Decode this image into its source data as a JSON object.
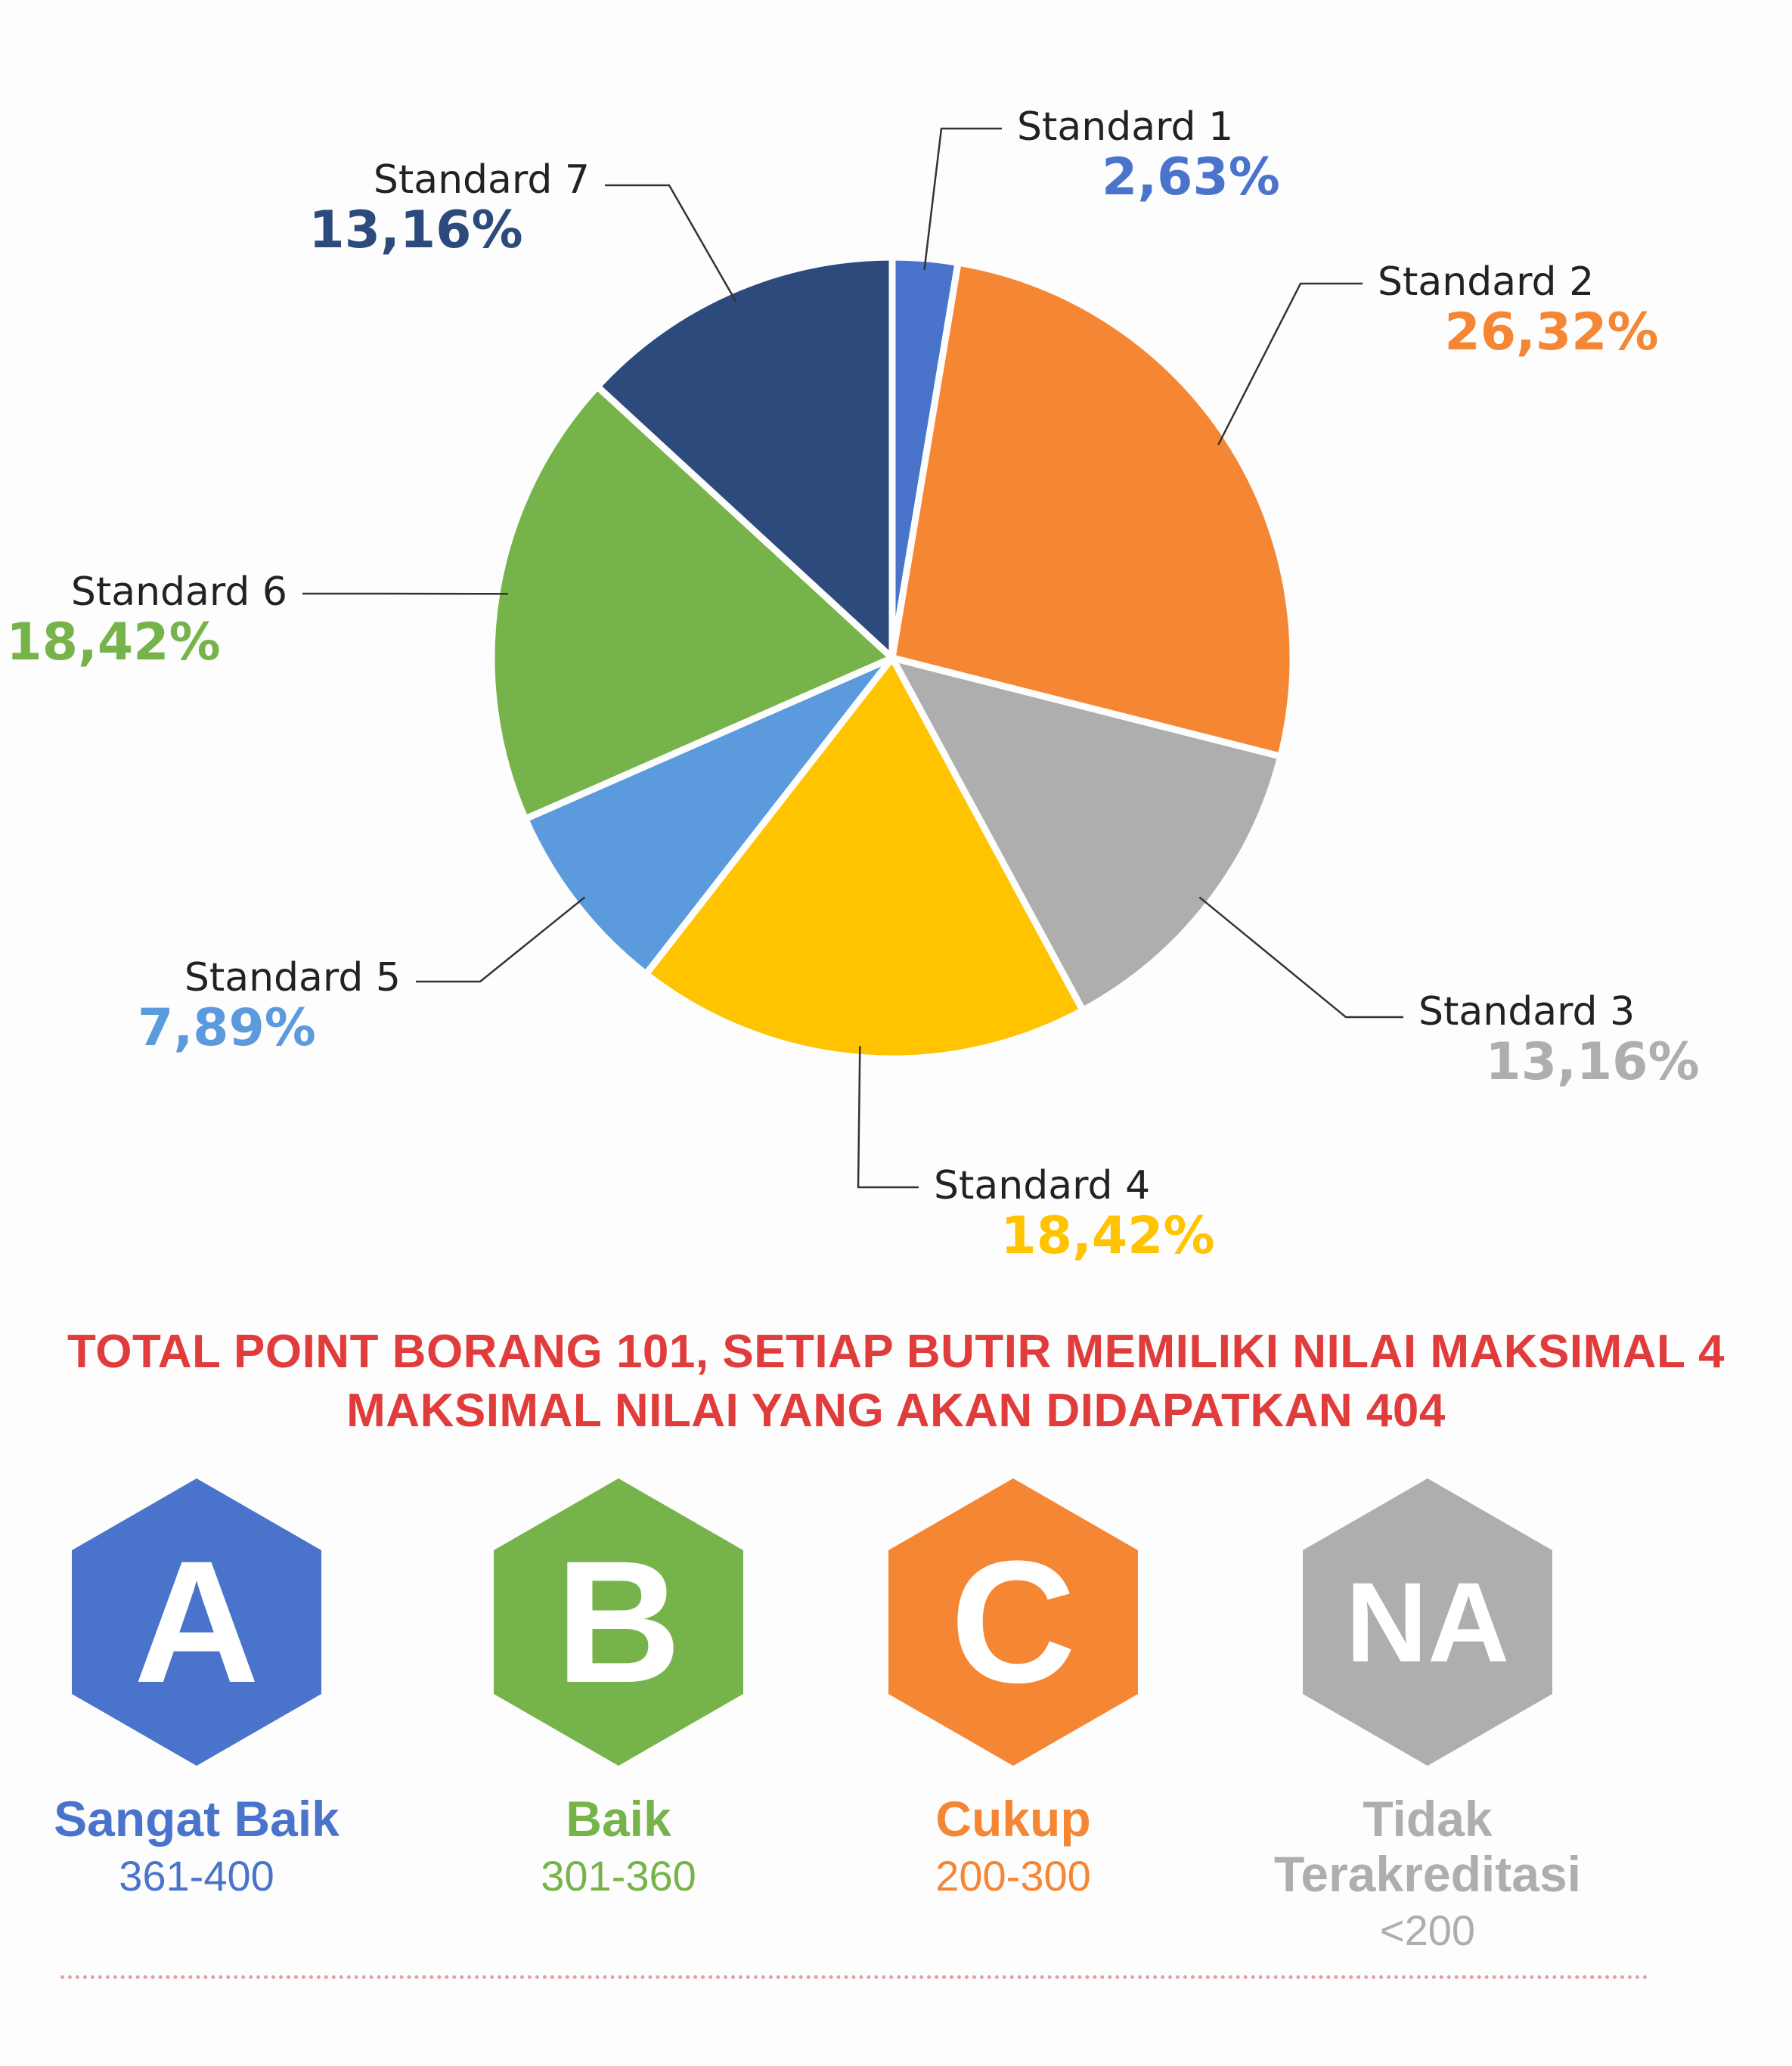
{
  "chart_data": {
    "type": "pie",
    "slices": [
      {
        "name": "Standard 1",
        "value": 2.63,
        "label": "2,63%",
        "color": "#4a74cc"
      },
      {
        "name": "Standard 2",
        "value": 26.32,
        "label": "26,32%",
        "color": "#f58634"
      },
      {
        "name": "Standard 3",
        "value": 13.16,
        "label": "13,16%",
        "color": "#aeaeae"
      },
      {
        "name": "Standard 4",
        "value": 18.42,
        "label": "18,42%",
        "color": "#ffc300"
      },
      {
        "name": "Standard 5",
        "value": 7.89,
        "label": "7,89%",
        "color": "#5b9bdd"
      },
      {
        "name": "Standard 6",
        "value": 18.42,
        "label": "18,42%",
        "color": "#76b44b"
      },
      {
        "name": "Standard 7",
        "value": 13.16,
        "label": "13,16%",
        "color": "#2c4b7c"
      }
    ]
  },
  "headline": {
    "line1": "TOTAL POINT BORANG 101, SETIAP BUTIR MEMILIKI NILAI MAKSIMAL 4",
    "line2": "MAKSIMAL NILAI YANG AKAN DIDAPATKAN 404"
  },
  "grades": [
    {
      "letter": "A",
      "title": "Sangat Baik",
      "range": "361-400",
      "color": "#4a74cc",
      "text_color": "#4a74cc"
    },
    {
      "letter": "B",
      "title": "Baik",
      "range": "301-360",
      "color": "#76b44b",
      "text_color": "#76b44b"
    },
    {
      "letter": "C",
      "title": "Cukup",
      "range": "200-300",
      "color": "#f58634",
      "text_color": "#f58634"
    },
    {
      "letter": "NA",
      "title": "Tidak Terakreditasi",
      "range": "<200",
      "color": "#aeaeae",
      "text_color": "#aeaeae"
    }
  ]
}
